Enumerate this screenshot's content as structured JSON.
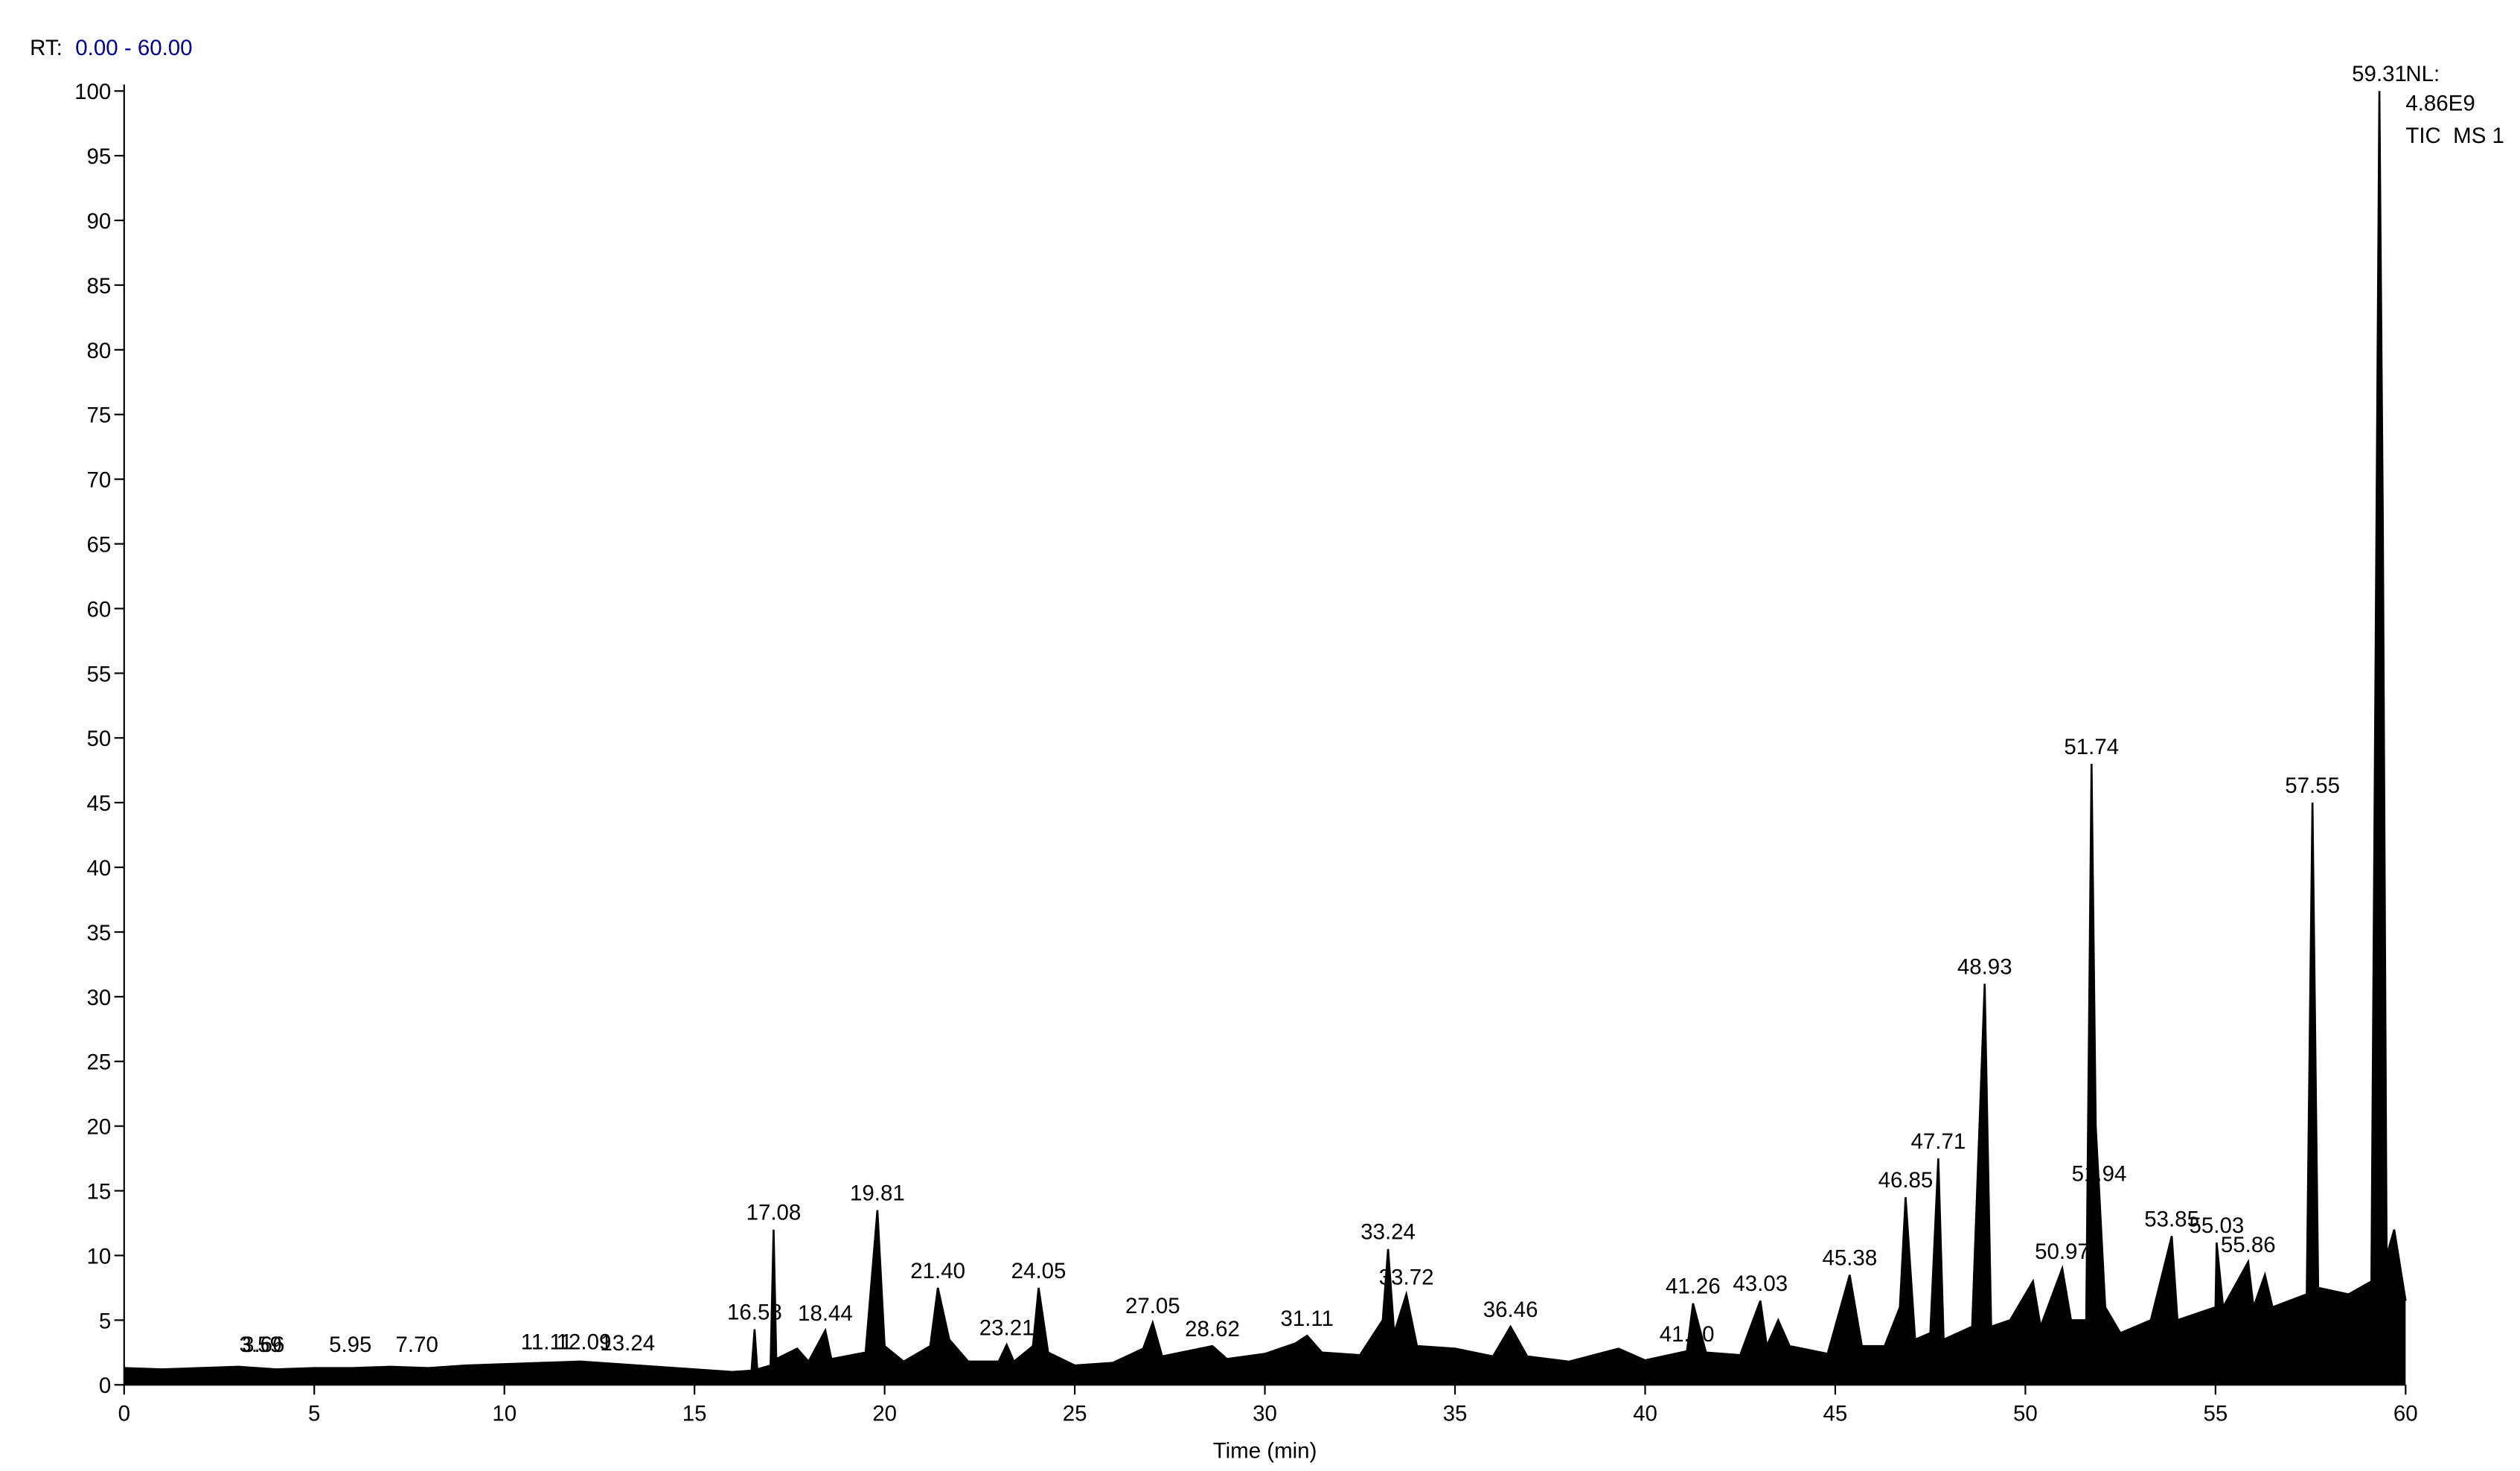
{
  "chart_data": {
    "type": "line",
    "rt_label": "RT:",
    "rt_range": "0.00 - 60.00",
    "nl_label": "NL:",
    "nl_value": "4.86E9",
    "scan_filter": "TIC  MS 1",
    "xlabel": "Time (min)",
    "color": "#000000",
    "label_color": "#000000",
    "range_color": "#000080",
    "xlim": [
      0,
      60
    ],
    "xticks": [
      0,
      5,
      10,
      15,
      20,
      25,
      30,
      35,
      40,
      45,
      50,
      55,
      60
    ],
    "ylim": [
      0,
      100
    ],
    "yticks": [
      0,
      5,
      10,
      15,
      20,
      25,
      30,
      35,
      40,
      45,
      50,
      55,
      60,
      65,
      70,
      75,
      80,
      85,
      90,
      95,
      100
    ],
    "x": [
      0,
      1,
      2,
      3,
      4,
      5,
      6,
      7,
      8,
      9,
      10,
      11,
      12,
      13,
      14,
      15,
      16,
      16.5,
      16.58,
      16.65,
      17.0,
      17.08,
      17.15,
      17.7,
      18.0,
      18.44,
      18.6,
      19.5,
      19.81,
      20.0,
      20.5,
      21.2,
      21.4,
      21.7,
      22.2,
      23.0,
      23.21,
      23.4,
      23.9,
      24.05,
      24.3,
      25,
      26,
      26.8,
      27.05,
      27.3,
      28.62,
      29,
      30,
      30.8,
      31.11,
      31.5,
      32.5,
      33.1,
      33.24,
      33.4,
      33.72,
      34.0,
      35,
      36,
      36.46,
      36.9,
      38,
      39.3,
      40,
      41.1,
      41.26,
      41.6,
      42.5,
      43.03,
      43.2,
      43.5,
      43.8,
      44.8,
      45.38,
      45.7,
      46.3,
      46.7,
      46.85,
      47.1,
      47.5,
      47.71,
      47.85,
      48.6,
      48.93,
      49.1,
      49.6,
      50.2,
      50.4,
      50.97,
      51.2,
      51.6,
      51.74,
      51.85,
      51.94,
      52.1,
      52.5,
      53.3,
      53.85,
      54.0,
      55.0,
      55.03,
      55.2,
      55.86,
      56.0,
      56.3,
      56.5,
      57.4,
      57.55,
      57.7,
      58.5,
      59.1,
      59.31,
      59.4,
      59.5,
      59.7,
      60
    ],
    "values": [
      1.3,
      1.2,
      1.3,
      1.4,
      1.2,
      1.3,
      1.3,
      1.4,
      1.3,
      1.5,
      1.6,
      1.7,
      1.8,
      1.6,
      1.4,
      1.2,
      1.0,
      1.1,
      4.3,
      1.2,
      1.5,
      12,
      2,
      2.8,
      1.8,
      4.2,
      2,
      2.5,
      13.5,
      3,
      1.8,
      3,
      7.5,
      3.5,
      1.8,
      1.8,
      3.1,
      1.8,
      3,
      7.5,
      2.5,
      1.5,
      1.7,
      2.8,
      4.8,
      2.2,
      3,
      2,
      2.4,
      3.2,
      3.8,
      2.5,
      2.3,
      5,
      10.5,
      4,
      7,
      3,
      2.8,
      2.2,
      4.5,
      2.2,
      1.8,
      2.8,
      1.9,
      2.6,
      6.3,
      2.5,
      2.3,
      6.5,
      3,
      5,
      3,
      2.4,
      8.5,
      3,
      3,
      6,
      14.5,
      3.5,
      4,
      17.5,
      3.5,
      4.5,
      31,
      4.5,
      5,
      8,
      4.5,
      9,
      5,
      5,
      48,
      20,
      15,
      6,
      4,
      5,
      11.5,
      5,
      6,
      11,
      6,
      9.5,
      6,
      8.5,
      6,
      7,
      45,
      7.5,
      7,
      8,
      100,
      67,
      10,
      12,
      6.5
    ],
    "peaks": [
      {
        "rt": 3.59,
        "height": 1.8
      },
      {
        "rt": 3.66,
        "height": 1.8
      },
      {
        "rt": 5.95,
        "height": 1.8
      },
      {
        "rt": 7.7,
        "label": "7.70",
        "height": 1.8
      },
      {
        "rt": 11.11,
        "height": 2
      },
      {
        "rt": 12.09,
        "height": 2
      },
      {
        "rt": 13.24,
        "height": 1.9
      },
      {
        "rt": 16.58,
        "height": 4.3
      },
      {
        "rt": 17.08,
        "height": 12
      },
      {
        "rt": 18.44,
        "height": 4.2
      },
      {
        "rt": 19.81,
        "height": 13.5
      },
      {
        "rt": 21.4,
        "label": "21.40",
        "height": 7.5
      },
      {
        "rt": 23.21,
        "height": 3.1
      },
      {
        "rt": 24.05,
        "height": 7.5
      },
      {
        "rt": 27.05,
        "height": 4.8
      },
      {
        "rt": 28.62,
        "height": 3
      },
      {
        "rt": 31.11,
        "height": 3.8
      },
      {
        "rt": 33.24,
        "height": 10.5
      },
      {
        "rt": 33.72,
        "height": 7
      },
      {
        "rt": 36.46,
        "height": 4.5
      },
      {
        "rt": 41.1,
        "label": "41.10",
        "height": 2.6
      },
      {
        "rt": 41.26,
        "height": 6.3
      },
      {
        "rt": 43.03,
        "height": 6.5
      },
      {
        "rt": 45.38,
        "height": 8.5
      },
      {
        "rt": 46.85,
        "height": 14.5
      },
      {
        "rt": 47.71,
        "height": 17.5
      },
      {
        "rt": 48.93,
        "height": 31
      },
      {
        "rt": 50.97,
        "height": 9
      },
      {
        "rt": 51.74,
        "height": 48
      },
      {
        "rt": 51.94,
        "height": 15
      },
      {
        "rt": 53.85,
        "height": 11.5
      },
      {
        "rt": 55.03,
        "height": 11
      },
      {
        "rt": 55.86,
        "height": 9.5
      },
      {
        "rt": 57.55,
        "height": 45
      },
      {
        "rt": 59.31,
        "height": 100
      }
    ]
  }
}
